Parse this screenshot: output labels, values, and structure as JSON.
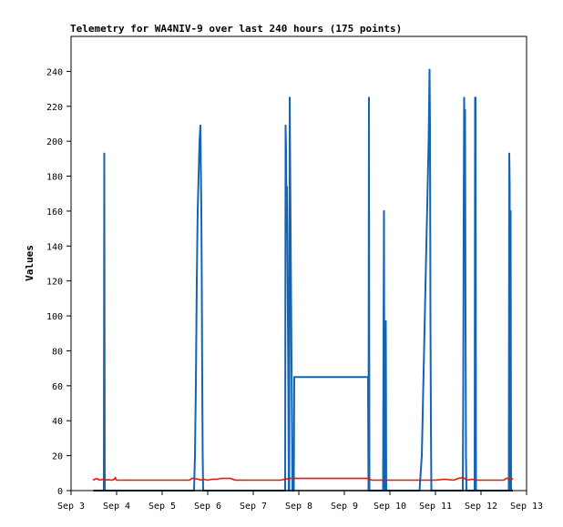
{
  "chart_data": {
    "type": "line",
    "title": "Telemetry for WA4NIV-9 over last 240 hours (175 points)",
    "xlabel": "",
    "ylabel": "Values",
    "ylim": [
      0,
      260
    ],
    "xlim": [
      0,
      10
    ],
    "x_ticks": [
      {
        "x": 0,
        "label": "Sep 3"
      },
      {
        "x": 1,
        "label": "Sep 4"
      },
      {
        "x": 2,
        "label": "Sep 5"
      },
      {
        "x": 3,
        "label": "Sep 6"
      },
      {
        "x": 4,
        "label": "Sep 7"
      },
      {
        "x": 5,
        "label": "Sep 8"
      },
      {
        "x": 6,
        "label": "Sep 9"
      },
      {
        "x": 7,
        "label": "Sep 10"
      },
      {
        "x": 8,
        "label": "Sep 11"
      },
      {
        "x": 9,
        "label": "Sep 12"
      },
      {
        "x": 10,
        "label": "Sep 13"
      }
    ],
    "y_ticks": [
      0,
      20,
      40,
      60,
      80,
      100,
      120,
      140,
      160,
      180,
      200,
      220,
      240
    ],
    "grid": false,
    "series": [
      {
        "color": "#1464b4",
        "x": [
          0.5,
          0.72,
          0.73,
          0.74,
          0.75,
          2.7,
          2.72,
          2.74,
          2.76,
          2.78,
          2.8,
          2.82,
          2.84,
          2.86,
          2.87,
          2.88,
          2.89,
          2.9,
          4.7,
          4.71,
          4.72,
          4.73,
          4.74,
          4.75,
          4.76,
          4.77,
          4.78,
          4.79,
          4.8,
          4.86,
          4.87,
          4.88,
          4.89,
          4.9,
          6.52,
          6.53,
          6.54,
          6.55,
          6.85,
          6.86,
          6.87,
          6.88,
          6.89,
          6.9,
          6.91,
          6.92,
          6.96,
          6.97,
          6.98,
          6.99,
          7.65,
          7.7,
          7.75,
          7.8,
          7.85,
          7.87,
          7.88,
          7.89,
          7.9,
          7.91,
          8.6,
          8.61,
          8.62,
          8.63,
          8.64,
          8.65,
          8.66,
          8.67,
          8.68,
          8.69,
          8.7,
          8.85,
          8.86,
          8.87,
          8.88,
          8.89,
          8.9,
          9.6,
          9.61,
          9.62,
          9.63,
          9.64,
          9.65,
          9.66,
          9.7
        ],
        "y": [
          0,
          0,
          193,
          0,
          0,
          0,
          20,
          60,
          120,
          160,
          180,
          200,
          209,
          160,
          120,
          60,
          20,
          0,
          0,
          209,
          195,
          150,
          174,
          140,
          100,
          60,
          0,
          0,
          225,
          0,
          0,
          0,
          0,
          65,
          65,
          0,
          225,
          0,
          0,
          90,
          160,
          0,
          0,
          0,
          97,
          0,
          0,
          0,
          0,
          0,
          0,
          20,
          80,
          140,
          200,
          241,
          210,
          100,
          40,
          0,
          0,
          60,
          160,
          225,
          180,
          218,
          100,
          20,
          0,
          0,
          0,
          0,
          0,
          225,
          225,
          0,
          0,
          0,
          0,
          193,
          175,
          0,
          160,
          0,
          0
        ]
      },
      {
        "color": "#e6140a",
        "x": [
          0.48,
          0.52,
          0.56,
          0.6,
          0.62,
          0.66,
          0.7,
          0.72,
          0.8,
          0.9,
          0.95,
          0.97,
          1.0,
          1.2,
          1.4,
          1.6,
          1.8,
          2.0,
          2.2,
          2.4,
          2.6,
          2.65,
          2.7,
          2.8,
          2.85,
          2.9,
          3.0,
          3.1,
          3.2,
          3.3,
          3.4,
          3.5,
          3.6,
          3.7,
          3.8,
          4.0,
          4.2,
          4.4,
          4.6,
          4.7,
          4.8,
          5.0,
          5.5,
          6.0,
          6.5,
          6.6,
          6.8,
          7.0,
          7.2,
          7.4,
          7.6,
          7.7,
          7.8,
          8.0,
          8.2,
          8.4,
          8.5,
          8.6,
          8.7,
          8.8,
          8.9,
          9.0,
          9.2,
          9.4,
          9.5,
          9.55,
          9.6,
          9.65,
          9.7
        ],
        "y": [
          6,
          6.5,
          6.8,
          6.5,
          6,
          6.2,
          6.5,
          6,
          6.2,
          6,
          6.5,
          7.5,
          6,
          6,
          6,
          6,
          6,
          6,
          6,
          6,
          6,
          7,
          7,
          6.5,
          6,
          6.5,
          6,
          6.5,
          6.5,
          7,
          7,
          7,
          6,
          6,
          6,
          6,
          6,
          6,
          6,
          6.5,
          7,
          7,
          7,
          7,
          7,
          6,
          6,
          6,
          6,
          6,
          6,
          6,
          6,
          6,
          6.5,
          6,
          7,
          7.5,
          6,
          6.5,
          6,
          6,
          6,
          6,
          6,
          7,
          7,
          6,
          7
        ]
      },
      {
        "color": "#000000",
        "x": [
          0.48,
          9.7
        ],
        "y": [
          0,
          0
        ]
      }
    ]
  }
}
